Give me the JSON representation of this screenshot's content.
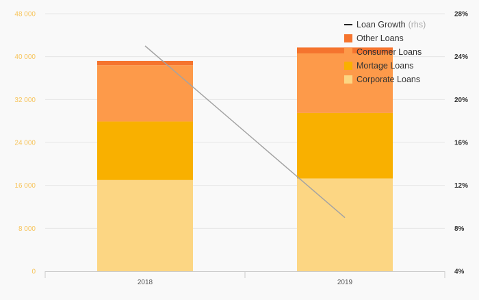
{
  "chart_data": {
    "type": "bar",
    "stacked": true,
    "categories": [
      "2018",
      "2019"
    ],
    "series": [
      {
        "name": "Corporate Loans",
        "values": [
          17000,
          17300
        ],
        "color": "#fcd683"
      },
      {
        "name": "Mortage Loans",
        "values": [
          10900,
          12200
        ],
        "color": "#f9b000"
      },
      {
        "name": "Consumer Loans",
        "values": [
          10500,
          11100
        ],
        "color": "#fd9a4a"
      },
      {
        "name": "Other Loans",
        "values": [
          800,
          1100
        ],
        "color": "#f5742e"
      }
    ],
    "line_series": {
      "name": "Loan Growth",
      "axis": "right",
      "values": [
        25.0,
        9.0
      ],
      "color": "#a3a3a3"
    },
    "legend": [
      {
        "label": "Loan Growth",
        "note": "(rhs)",
        "kind": "line",
        "color": "#222222"
      },
      {
        "label": "Other Loans",
        "kind": "box",
        "color": "#f5742e"
      },
      {
        "label": "Consumer Loans",
        "kind": "box",
        "color": "#fd9a4a"
      },
      {
        "label": "Mortage Loans",
        "kind": "box",
        "color": "#f9b000"
      },
      {
        "label": "Corporate Loans",
        "kind": "box",
        "color": "#fcd683"
      }
    ],
    "ylim": [
      0,
      48000
    ],
    "y_ticks": [
      0,
      8000,
      16000,
      24000,
      32000,
      40000,
      48000
    ],
    "y_tick_labels": [
      "0",
      "8 000",
      "16 000",
      "24 000",
      "32 000",
      "40 000",
      "48 000"
    ],
    "y2lim": [
      4,
      28
    ],
    "y2_ticks": [
      4,
      8,
      12,
      16,
      20,
      24,
      28
    ],
    "y2_tick_labels": [
      "4%",
      "8%",
      "12%",
      "16%",
      "20%",
      "24%",
      "28%"
    ],
    "legend_position": "top-right",
    "grid": true,
    "colors": {
      "left_ticks": "#f7c45c",
      "right_ticks": "#333333",
      "x_ticks": "#555555",
      "grid": "#e6e6e6"
    }
  }
}
